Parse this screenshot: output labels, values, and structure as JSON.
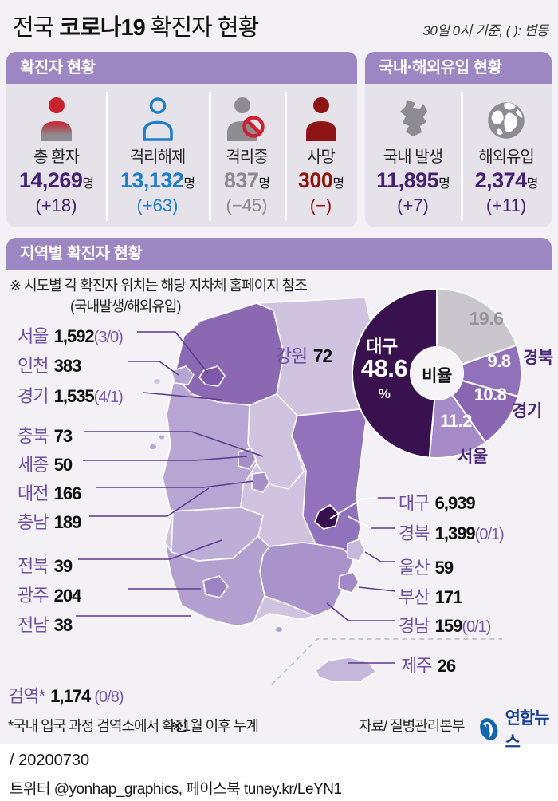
{
  "header": {
    "title_prefix": "전국 ",
    "title_bold": "코로나19",
    "title_suffix": " 확진자 현황",
    "note": "30일 0시 기준, ( ): 변동"
  },
  "status_box": {
    "title": "확진자 현황",
    "stats": [
      {
        "label": "총 환자",
        "value": "14,269",
        "unit": "명",
        "change": "(+18)",
        "color": "#45206e",
        "icon": "patient-icon"
      },
      {
        "label": "격리해제",
        "value": "13,132",
        "unit": "명",
        "change": "(+63)",
        "color": "#1e7ec6",
        "icon": "released-icon"
      },
      {
        "label": "격리중",
        "value": "837",
        "unit": "명",
        "change": "(−45)",
        "color": "#8c8b91",
        "icon": "isolating-icon"
      },
      {
        "label": "사망",
        "value": "300",
        "unit": "명",
        "change": "(−)",
        "color": "#8a160e",
        "icon": "death-icon"
      }
    ]
  },
  "origin_box": {
    "title": "국내·해외유입 현황",
    "stats": [
      {
        "label": "국내 발생",
        "value": "11,895",
        "unit": "명",
        "change": "(+7)",
        "color": "#45206e",
        "icon": "korea-map-icon"
      },
      {
        "label": "해외유입",
        "value": "2,374",
        "unit": "명",
        "change": "(+11)",
        "color": "#45206e",
        "icon": "globe-icon"
      }
    ]
  },
  "region_section": {
    "title": "지역별 확진자 현황",
    "note1": "※ 시도별 각 확진자 위치는 해당 지차체 홈페이지 참조",
    "note2": "(국내발생/해외유입)"
  },
  "regions": {
    "left": [
      {
        "name": "서울",
        "value": "1,592",
        "paren": "(3/0)"
      },
      {
        "name": "인천",
        "value": "383",
        "paren": ""
      },
      {
        "name": "경기",
        "value": "1,535",
        "paren": "(4/1)"
      },
      {
        "name": "충북",
        "value": "73",
        "paren": ""
      },
      {
        "name": "세종",
        "value": "50",
        "paren": ""
      },
      {
        "name": "대전",
        "value": "166",
        "paren": ""
      },
      {
        "name": "충남",
        "value": "189",
        "paren": ""
      },
      {
        "name": "전북",
        "value": "39",
        "paren": ""
      },
      {
        "name": "광주",
        "value": "204",
        "paren": ""
      },
      {
        "name": "전남",
        "value": "38",
        "paren": ""
      }
    ],
    "right": [
      {
        "name": "대구",
        "value": "6,939",
        "paren": ""
      },
      {
        "name": "경북",
        "value": "1,399",
        "paren": "(0/1)"
      },
      {
        "name": "울산",
        "value": "59",
        "paren": ""
      },
      {
        "name": "부산",
        "value": "171",
        "paren": ""
      },
      {
        "name": "경남",
        "value": "159",
        "paren": "(0/1)"
      },
      {
        "name": "제주",
        "value": "26",
        "paren": ""
      }
    ],
    "gangwon": {
      "name": "강원",
      "value": "72"
    },
    "quarantine": {
      "name": "검역*",
      "value": "1,174",
      "paren": "(0/8)"
    }
  },
  "chart_data": {
    "type": "pie",
    "title": "비율",
    "center_label": "비율",
    "pct_sign": "%",
    "start_angle_deg": 0,
    "direction": "clockwise",
    "donut": true,
    "slices": [
      {
        "label": "",
        "value": 19.6,
        "color": "#c9c7cd",
        "text_color": "#96949b"
      },
      {
        "label": "경북",
        "value": 9.8,
        "color": "#9172ba",
        "text_color": "#ffffff"
      },
      {
        "label": "경기",
        "value": 10.8,
        "color": "#8a66b2",
        "text_color": "#ffffff"
      },
      {
        "label": "서울",
        "value": 11.2,
        "color": "#a68bc8",
        "text_color": "#ffffff"
      },
      {
        "label": "대구",
        "value": 48.6,
        "color": "#39114f",
        "text_color": "#ffffff"
      }
    ]
  },
  "map": {
    "colors": {
      "base": "#cfc3e0",
      "gyeonggi": "#8a68b2",
      "seoul": "#7e59ab",
      "incheon": "#b7a5d3",
      "gangwon": "#cfc3e0",
      "chungbuk": "#cfc3e0",
      "sejong": "#a78fc8",
      "daejeon": "#a78fc8",
      "chungnam": "#b7a5d3",
      "jeonbuk": "#bdaed8",
      "gwangju": "#9d82c4",
      "jeonnam": "#b3a0d0",
      "gyeongbuk": "#9172bb",
      "daegu": "#38104f",
      "ulsan": "#c6b9dc",
      "busan": "#a286c6",
      "gyeongnam": "#aa92ca",
      "jeju": "#c5b7db"
    },
    "leader_line_color": "#5d3c8c"
  },
  "footnotes": {
    "quarantine_note": "*국내 입국 과정 검역소에서 확진",
    "cumulative_note": "※1월 이후 누계",
    "source": "자료/ 질병관리본부"
  },
  "logo": {
    "text": "연합뉴스"
  },
  "footer": {
    "date": "/ 20200730",
    "social": "트위터 @yonhap_graphics, 페이스북 tuney.kr/LeYN1"
  }
}
